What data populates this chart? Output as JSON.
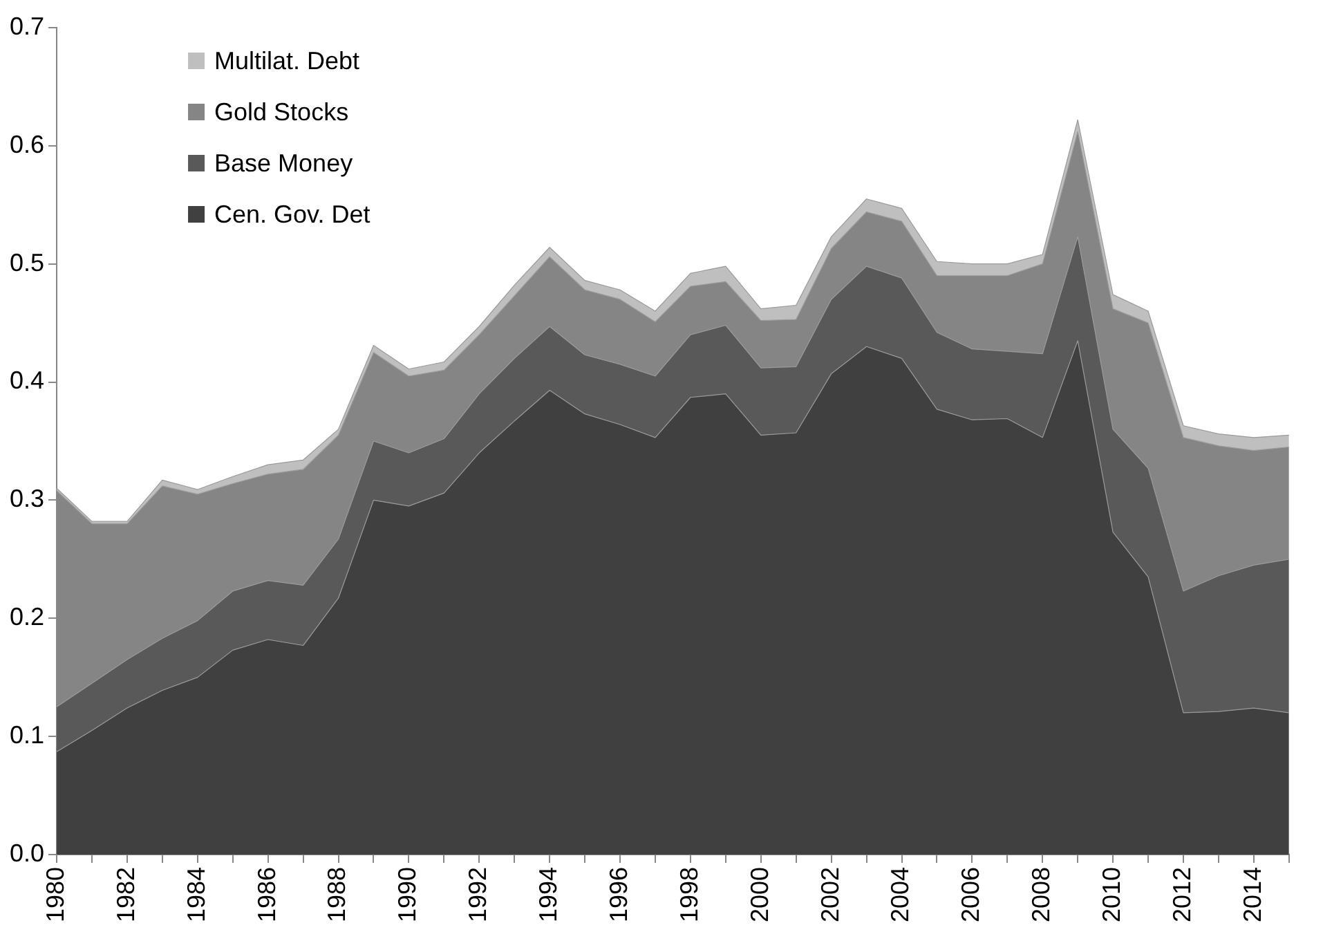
{
  "chart_data": {
    "type": "area",
    "stacked": true,
    "categories": [
      "1980",
      null,
      "1982",
      null,
      "1984",
      null,
      "1986",
      null,
      "1988",
      null,
      "1990",
      null,
      "1992",
      null,
      "1994",
      null,
      "1996",
      null,
      "1998",
      null,
      "2000",
      null,
      "2002",
      null,
      "2004",
      null,
      "2006",
      null,
      "2008",
      null,
      "2010",
      null,
      "2012",
      null,
      "2014",
      null
    ],
    "series": [
      {
        "name": "Cen. Gov. Det",
        "color": "#404040",
        "values": [
          0.087,
          0.105,
          0.124,
          0.139,
          0.15,
          0.173,
          0.182,
          0.177,
          0.217,
          0.3,
          0.295,
          0.306,
          0.34,
          0.367,
          0.393,
          0.373,
          0.364,
          0.353,
          0.387,
          0.39,
          0.355,
          0.357,
          0.407,
          0.43,
          0.42,
          0.377,
          0.368,
          0.369,
          0.353,
          0.435,
          0.273,
          0.235,
          0.12,
          0.121,
          0.124,
          0.12
        ]
      },
      {
        "name": "Base Money",
        "color": "#595959",
        "values": [
          0.038,
          0.04,
          0.041,
          0.044,
          0.048,
          0.05,
          0.05,
          0.051,
          0.05,
          0.05,
          0.045,
          0.046,
          0.05,
          0.053,
          0.054,
          0.05,
          0.051,
          0.052,
          0.053,
          0.058,
          0.057,
          0.056,
          0.063,
          0.068,
          0.068,
          0.065,
          0.06,
          0.057,
          0.071,
          0.088,
          0.087,
          0.092,
          0.103,
          0.115,
          0.121,
          0.13
        ]
      },
      {
        "name": "Gold Stocks",
        "color": "#858585",
        "values": [
          0.183,
          0.135,
          0.115,
          0.129,
          0.107,
          0.091,
          0.09,
          0.098,
          0.088,
          0.075,
          0.065,
          0.058,
          0.05,
          0.053,
          0.059,
          0.055,
          0.055,
          0.046,
          0.041,
          0.037,
          0.04,
          0.04,
          0.043,
          0.046,
          0.048,
          0.048,
          0.062,
          0.064,
          0.076,
          0.089,
          0.102,
          0.123,
          0.13,
          0.11,
          0.097,
          0.095
        ]
      },
      {
        "name": "Multilat. Debt",
        "color": "#bfbfbf",
        "values": [
          0.002,
          0.002,
          0.002,
          0.005,
          0.004,
          0.006,
          0.008,
          0.008,
          0.005,
          0.006,
          0.006,
          0.007,
          0.007,
          0.009,
          0.008,
          0.008,
          0.008,
          0.009,
          0.011,
          0.013,
          0.01,
          0.012,
          0.01,
          0.011,
          0.011,
          0.012,
          0.01,
          0.01,
          0.008,
          0.01,
          0.012,
          0.01,
          0.01,
          0.01,
          0.011,
          0.01
        ]
      }
    ],
    "ylim": [
      0,
      0.7
    ],
    "yticks": [
      {
        "value": 0,
        "label": "0.0"
      },
      {
        "value": 0.1,
        "label": "0.1"
      },
      {
        "value": 0.2,
        "label": "0.2"
      },
      {
        "value": 0.3,
        "label": "0.3"
      },
      {
        "value": 0.4,
        "label": "0.4"
      },
      {
        "value": 0.5,
        "label": "0.5"
      },
      {
        "value": 0.6,
        "label": "0.6"
      },
      {
        "value": 0.7,
        "label": "0.7"
      }
    ],
    "grid": false,
    "legend": "top left"
  }
}
